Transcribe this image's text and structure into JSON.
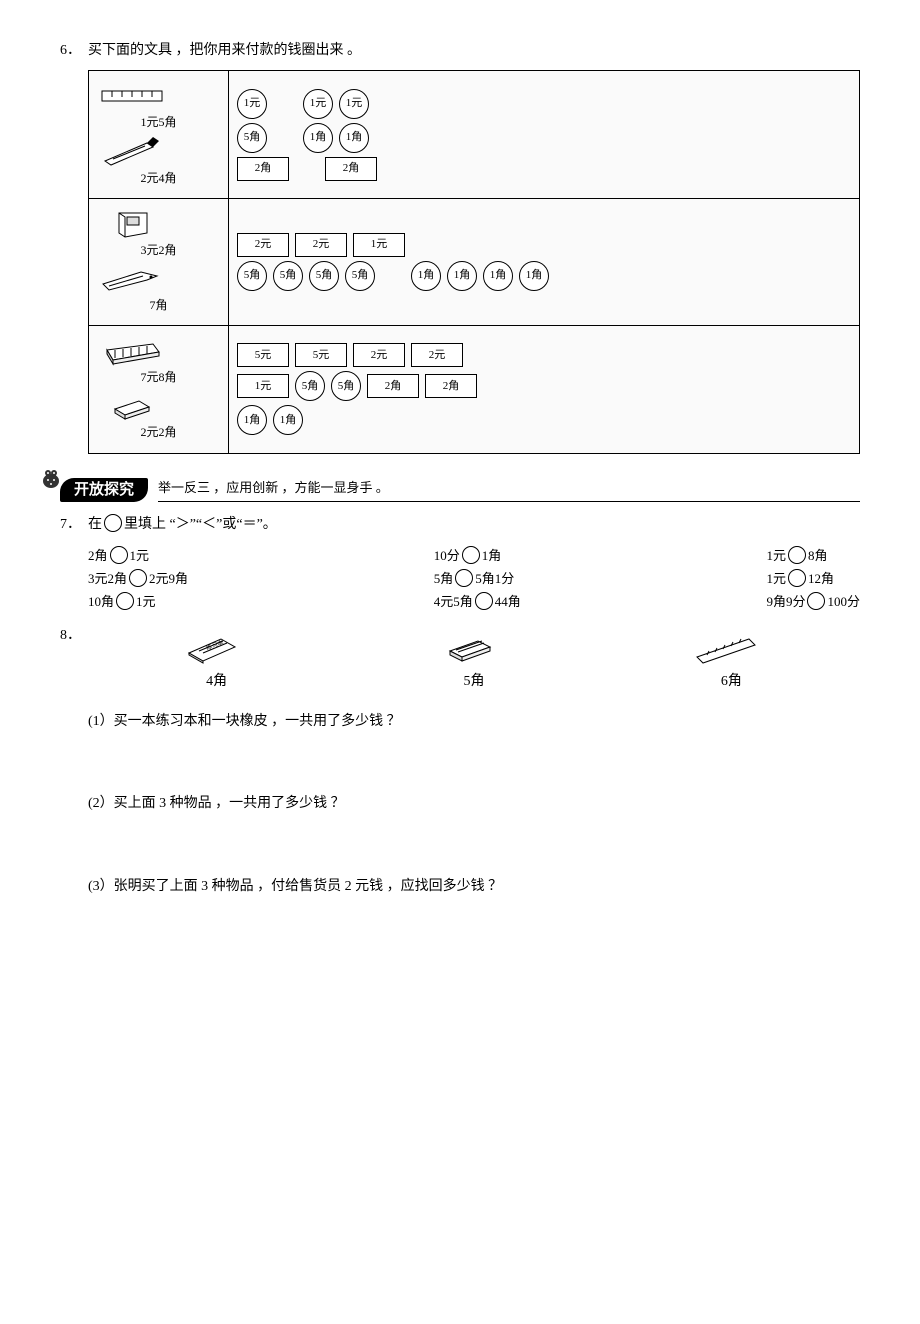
{
  "q6": {
    "num": "6．",
    "intro": "买下面的文具 ，把你用来付款的钱圈出来 。",
    "rows": [
      {
        "items": [
          {
            "icon": "ruler",
            "label": "1元5角"
          },
          {
            "icon": "pen",
            "label": "2元4角"
          }
        ],
        "money": [
          [
            {
              "t": "coin",
              "v": "1元"
            },
            {
              "t": "coin",
              "v": "1元"
            },
            {
              "t": "coin",
              "v": "1元"
            }
          ],
          [
            {
              "t": "coin",
              "v": "5角"
            },
            {
              "t": "coin",
              "v": "1角"
            },
            {
              "t": "coin",
              "v": "1角"
            }
          ],
          [
            {
              "t": "bill",
              "v": "2角"
            },
            {
              "t": "bill",
              "v": "2角"
            }
          ]
        ],
        "gapAfter": [
          0,
          2
        ]
      },
      {
        "items": [
          {
            "icon": "notebook",
            "label": "3元2角"
          },
          {
            "icon": "knife",
            "label": "7角"
          }
        ],
        "money": [
          [
            {
              "t": "bill",
              "v": "2元"
            },
            {
              "t": "bill",
              "v": "2元"
            },
            {
              "t": "bill",
              "v": "1元"
            }
          ],
          [
            {
              "t": "coin",
              "v": "5角"
            },
            {
              "t": "coin",
              "v": "5角"
            },
            {
              "t": "coin",
              "v": "5角"
            },
            {
              "t": "coin",
              "v": "5角"
            },
            {
              "t": "coin",
              "v": "1角"
            },
            {
              "t": "coin",
              "v": "1角"
            },
            {
              "t": "coin",
              "v": "1角"
            },
            {
              "t": "coin",
              "v": "1角"
            }
          ]
        ],
        "gapAfter": [
          3
        ]
      },
      {
        "items": [
          {
            "icon": "pbox",
            "label": "7元8角"
          },
          {
            "icon": "eraser",
            "label": "2元2角"
          }
        ],
        "money": [
          [
            {
              "t": "bill",
              "v": "5元"
            },
            {
              "t": "bill",
              "v": "5元"
            },
            {
              "t": "bill",
              "v": "2元"
            },
            {
              "t": "bill",
              "v": "2元"
            }
          ],
          [
            {
              "t": "bill",
              "v": "1元"
            },
            {
              "t": "coin",
              "v": "5角"
            },
            {
              "t": "coin",
              "v": "5角"
            },
            {
              "t": "bill",
              "v": "2角"
            },
            {
              "t": "bill",
              "v": "2角"
            }
          ],
          [
            {
              "t": "coin",
              "v": "1角"
            },
            {
              "t": "coin",
              "v": "1角"
            }
          ]
        ],
        "gapAfter": []
      }
    ]
  },
  "section": {
    "title": "开放探究",
    "sub": "举一反三 ，应用创新 ，方能一显身手 。"
  },
  "q7": {
    "num": "7．",
    "intro_a": "在",
    "intro_b": "里填上 “＞”“＜”或“＝”。",
    "cols": [
      [
        {
          "l": "2角",
          "r": "1元"
        },
        {
          "l": "3元2角",
          "r": "2元9角"
        },
        {
          "l": "10角",
          "r": "1元"
        }
      ],
      [
        {
          "l": "10分",
          "r": "1角"
        },
        {
          "l": "5角",
          "r": "5角1分"
        },
        {
          "l": "4元5角",
          "r": "44角"
        }
      ],
      [
        {
          "l": "1元",
          "r": "8角"
        },
        {
          "l": "1元",
          "r": "12角"
        },
        {
          "l": "9角9分",
          "r": "100分"
        }
      ]
    ]
  },
  "q8": {
    "num": "8．",
    "shop": [
      {
        "icon": "workbook",
        "price": "4角"
      },
      {
        "icon": "eraser2",
        "price": "5角"
      },
      {
        "icon": "ruler2",
        "price": "6角"
      }
    ],
    "subs": [
      "(1）买一本练习本和一块橡皮 ，一共用了多少钱 ？",
      "(2）买上面 3 种物品 ，一共用了多少钱 ？",
      "(3）张明买了上面 3 种物品 ，付给售货员 2 元钱 ，应找回多少钱 ？"
    ]
  }
}
